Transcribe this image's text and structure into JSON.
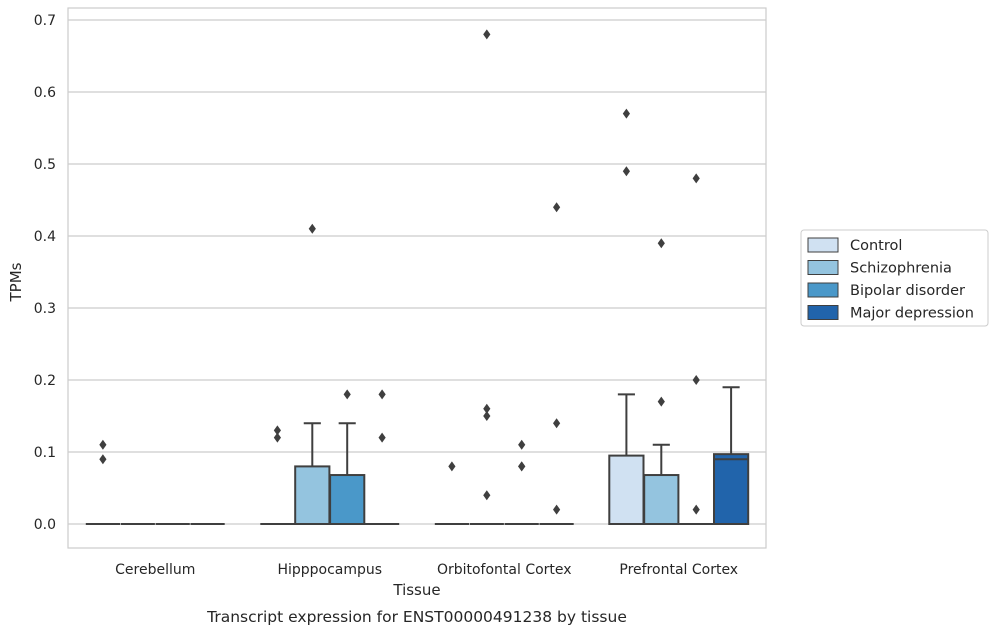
{
  "chart_data": {
    "type": "box",
    "title": "",
    "caption": "Transcript expression for ENST00000491238 by tissue",
    "xlabel": "Tissue",
    "ylabel": "TPMs",
    "ylim": [
      -0.033,
      0.715
    ],
    "yticks": [
      0.0,
      0.1,
      0.2,
      0.3,
      0.4,
      0.5,
      0.6,
      0.7
    ],
    "ytick_labels": [
      "0.0",
      "0.1",
      "0.2",
      "0.3",
      "0.4",
      "0.5",
      "0.6",
      "0.7"
    ],
    "grid": "horizontal",
    "legend_position": "right",
    "categories": [
      "Cerebellum",
      "Hipppocampus",
      "Orbitofontal Cortex",
      "Prefrontal Cortex"
    ],
    "series": [
      {
        "name": "Control",
        "color": "#d0e1f2",
        "boxes": [
          {
            "q1": 0.0,
            "median": 0.0,
            "q3": 0.0,
            "whisker_low": 0.0,
            "whisker_high": 0.0,
            "outliers": [
              0.11,
              0.09
            ]
          },
          {
            "q1": 0.0,
            "median": 0.0,
            "q3": 0.0,
            "whisker_low": 0.0,
            "whisker_high": 0.0,
            "outliers": [
              0.13,
              0.12
            ]
          },
          {
            "q1": 0.0,
            "median": 0.0,
            "q3": 0.0,
            "whisker_low": 0.0,
            "whisker_high": 0.0,
            "outliers": [
              0.08
            ]
          },
          {
            "q1": 0.0,
            "median": 0.0,
            "q3": 0.095,
            "whisker_low": 0.0,
            "whisker_high": 0.18,
            "outliers": [
              0.57,
              0.49
            ]
          }
        ]
      },
      {
        "name": "Schizophrenia",
        "color": "#94c4df",
        "boxes": [
          {
            "q1": 0.0,
            "median": 0.0,
            "q3": 0.0,
            "whisker_low": 0.0,
            "whisker_high": 0.0,
            "outliers": []
          },
          {
            "q1": 0.0,
            "median": 0.0,
            "q3": 0.08,
            "whisker_low": 0.0,
            "whisker_high": 0.14,
            "outliers": [
              0.41
            ]
          },
          {
            "q1": 0.0,
            "median": 0.0,
            "q3": 0.0,
            "whisker_low": 0.0,
            "whisker_high": 0.0,
            "outliers": [
              0.68,
              0.16,
              0.15,
              0.04
            ]
          },
          {
            "q1": 0.0,
            "median": 0.0,
            "q3": 0.068,
            "whisker_low": 0.0,
            "whisker_high": 0.11,
            "outliers": [
              0.17,
              0.39
            ]
          }
        ]
      },
      {
        "name": "Bipolar disorder",
        "color": "#4a98c9",
        "boxes": [
          {
            "q1": 0.0,
            "median": 0.0,
            "q3": 0.0,
            "whisker_low": 0.0,
            "whisker_high": 0.0,
            "outliers": []
          },
          {
            "q1": 0.0,
            "median": 0.0,
            "q3": 0.068,
            "whisker_low": 0.0,
            "whisker_high": 0.14,
            "outliers": [
              0.18
            ]
          },
          {
            "q1": 0.0,
            "median": 0.0,
            "q3": 0.0,
            "whisker_low": 0.0,
            "whisker_high": 0.0,
            "outliers": [
              0.11,
              0.08,
              0.08
            ]
          },
          {
            "q1": 0.0,
            "median": 0.0,
            "q3": 0.0,
            "whisker_low": 0.0,
            "whisker_high": 0.0,
            "outliers": [
              0.48,
              0.2,
              0.02
            ]
          }
        ]
      },
      {
        "name": "Major depression",
        "color": "#2164ab",
        "boxes": [
          {
            "q1": 0.0,
            "median": 0.0,
            "q3": 0.0,
            "whisker_low": 0.0,
            "whisker_high": 0.0,
            "outliers": []
          },
          {
            "q1": 0.0,
            "median": 0.0,
            "q3": 0.0,
            "whisker_low": 0.0,
            "whisker_high": 0.0,
            "outliers": [
              0.18,
              0.12
            ]
          },
          {
            "q1": 0.0,
            "median": 0.0,
            "q3": 0.0,
            "whisker_low": 0.0,
            "whisker_high": 0.0,
            "outliers": [
              0.44,
              0.14,
              0.02
            ]
          },
          {
            "q1": 0.0,
            "median": 0.09,
            "q3": 0.097,
            "whisker_low": 0.0,
            "whisker_high": 0.19,
            "outliers": []
          }
        ]
      }
    ]
  }
}
